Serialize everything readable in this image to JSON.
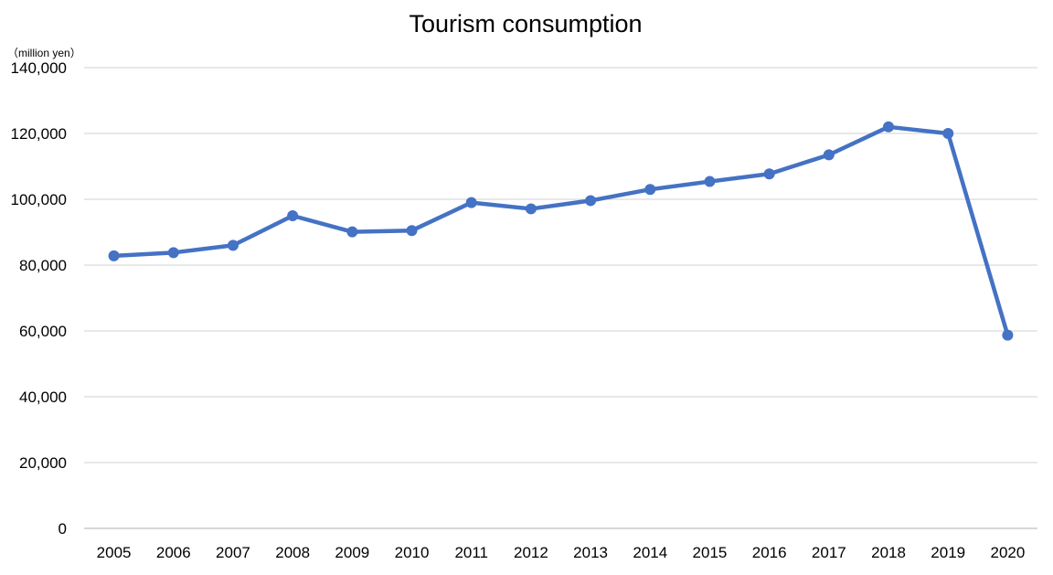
{
  "chart_data": {
    "type": "line",
    "title": "Tourism consumption",
    "unit_label": "（million yen）",
    "xlabel": "",
    "ylabel": "",
    "categories": [
      "2005",
      "2006",
      "2007",
      "2008",
      "2009",
      "2010",
      "2011",
      "2012",
      "2013",
      "2014",
      "2015",
      "2016",
      "2017",
      "2018",
      "2019",
      "2020"
    ],
    "series": [
      {
        "values": [
          82800,
          83800,
          86000,
          95000,
          90100,
          90500,
          99000,
          97100,
          99600,
          103000,
          105400,
          107700,
          113500,
          122000,
          120000,
          58700
        ]
      }
    ],
    "ylim": [
      0,
      140000
    ],
    "yticks": [
      0,
      20000,
      40000,
      60000,
      80000,
      100000,
      120000,
      140000
    ],
    "ytick_labels": [
      "0",
      "20,000",
      "40,000",
      "60,000",
      "80,000",
      "100,000",
      "120,000",
      "140,000"
    ],
    "grid": true,
    "legend": "none",
    "colors": {
      "line": "#4472C4",
      "grid": "#D9D9D9",
      "axis": "#BFBFBF"
    }
  }
}
